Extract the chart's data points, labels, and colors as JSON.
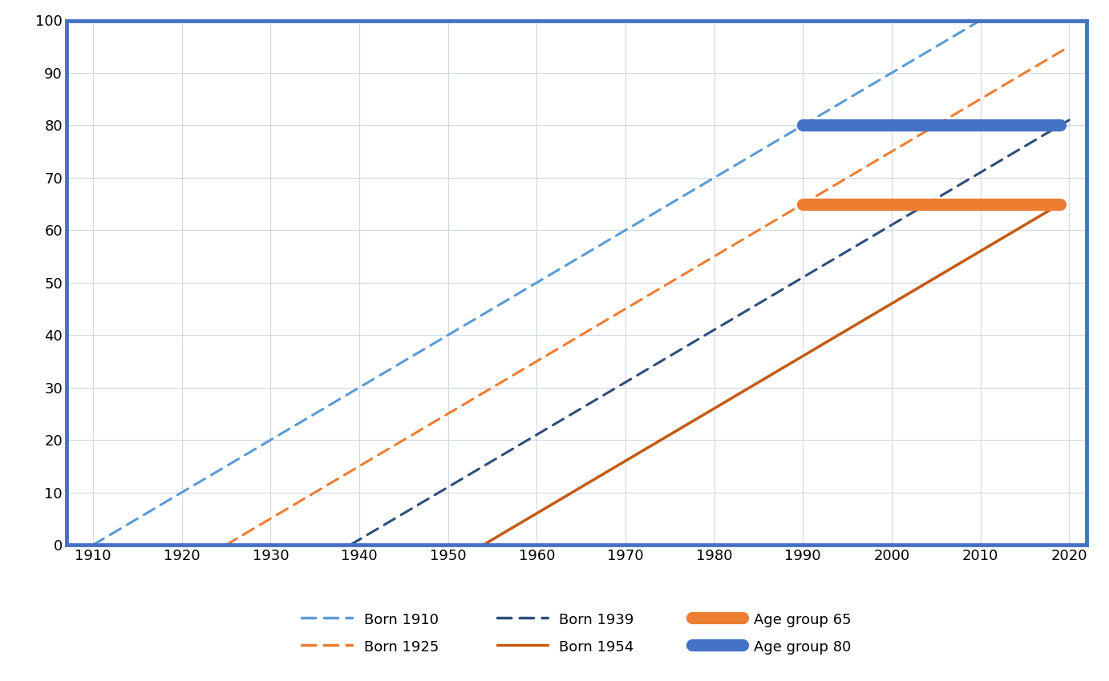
{
  "xlim": [
    1907,
    2022
  ],
  "ylim": [
    0,
    100
  ],
  "xticks": [
    1910,
    1920,
    1930,
    1940,
    1950,
    1960,
    1970,
    1980,
    1990,
    2000,
    2010,
    2020
  ],
  "yticks": [
    0,
    10,
    20,
    30,
    40,
    50,
    60,
    70,
    80,
    90,
    100
  ],
  "background_color": "#ffffff",
  "plot_background": "#ffffff",
  "border_color": "#4472c4",
  "grid_color": "#d0d8e8",
  "lines": [
    {
      "label": "Born 1910",
      "x": [
        1910,
        2010
      ],
      "y": [
        0,
        100
      ],
      "color": "#5b9bd5",
      "linestyle": "dashed",
      "linewidth": 2.2
    },
    {
      "label": "Born 1925",
      "x": [
        1925,
        2020
      ],
      "y": [
        0,
        95
      ],
      "color": "#ed7d31",
      "linestyle": "dashed",
      "linewidth": 2.2
    },
    {
      "label": "Born 1939",
      "x": [
        1939,
        2020
      ],
      "y": [
        0,
        81
      ],
      "color": "#2e4d7b",
      "linestyle": "dashed",
      "linewidth": 2.2
    },
    {
      "label": "Born 1954",
      "x": [
        1954,
        2019
      ],
      "y": [
        0,
        65
      ],
      "color": "#c55a11",
      "linestyle": "solid",
      "linewidth": 2.5
    },
    {
      "label": "Age group 65",
      "x": [
        1990,
        2019
      ],
      "y": [
        65,
        65
      ],
      "color": "#ed7d31",
      "linestyle": "solid",
      "linewidth": 11
    },
    {
      "label": "Age group 80",
      "x": [
        1990,
        2019
      ],
      "y": [
        80,
        80
      ],
      "color": "#4472c4",
      "linestyle": "solid",
      "linewidth": 11
    }
  ],
  "legend_entries": [
    {
      "label": "Born 1910",
      "color": "#5b9bd5",
      "linestyle": "dashed",
      "linewidth": 2.5
    },
    {
      "label": "Born 1925",
      "color": "#ed7d31",
      "linestyle": "dashed",
      "linewidth": 2.5
    },
    {
      "label": "Born 1939",
      "color": "#2e4d7b",
      "linestyle": "dashed",
      "linewidth": 2.5
    },
    {
      "label": "Born 1954",
      "color": "#c55a11",
      "linestyle": "solid",
      "linewidth": 2.5
    },
    {
      "label": "Age group 65",
      "color": "#ed7d31",
      "linestyle": "solid",
      "linewidth": 11
    },
    {
      "label": "Age group 80",
      "color": "#4472c4",
      "linestyle": "solid",
      "linewidth": 11
    }
  ]
}
